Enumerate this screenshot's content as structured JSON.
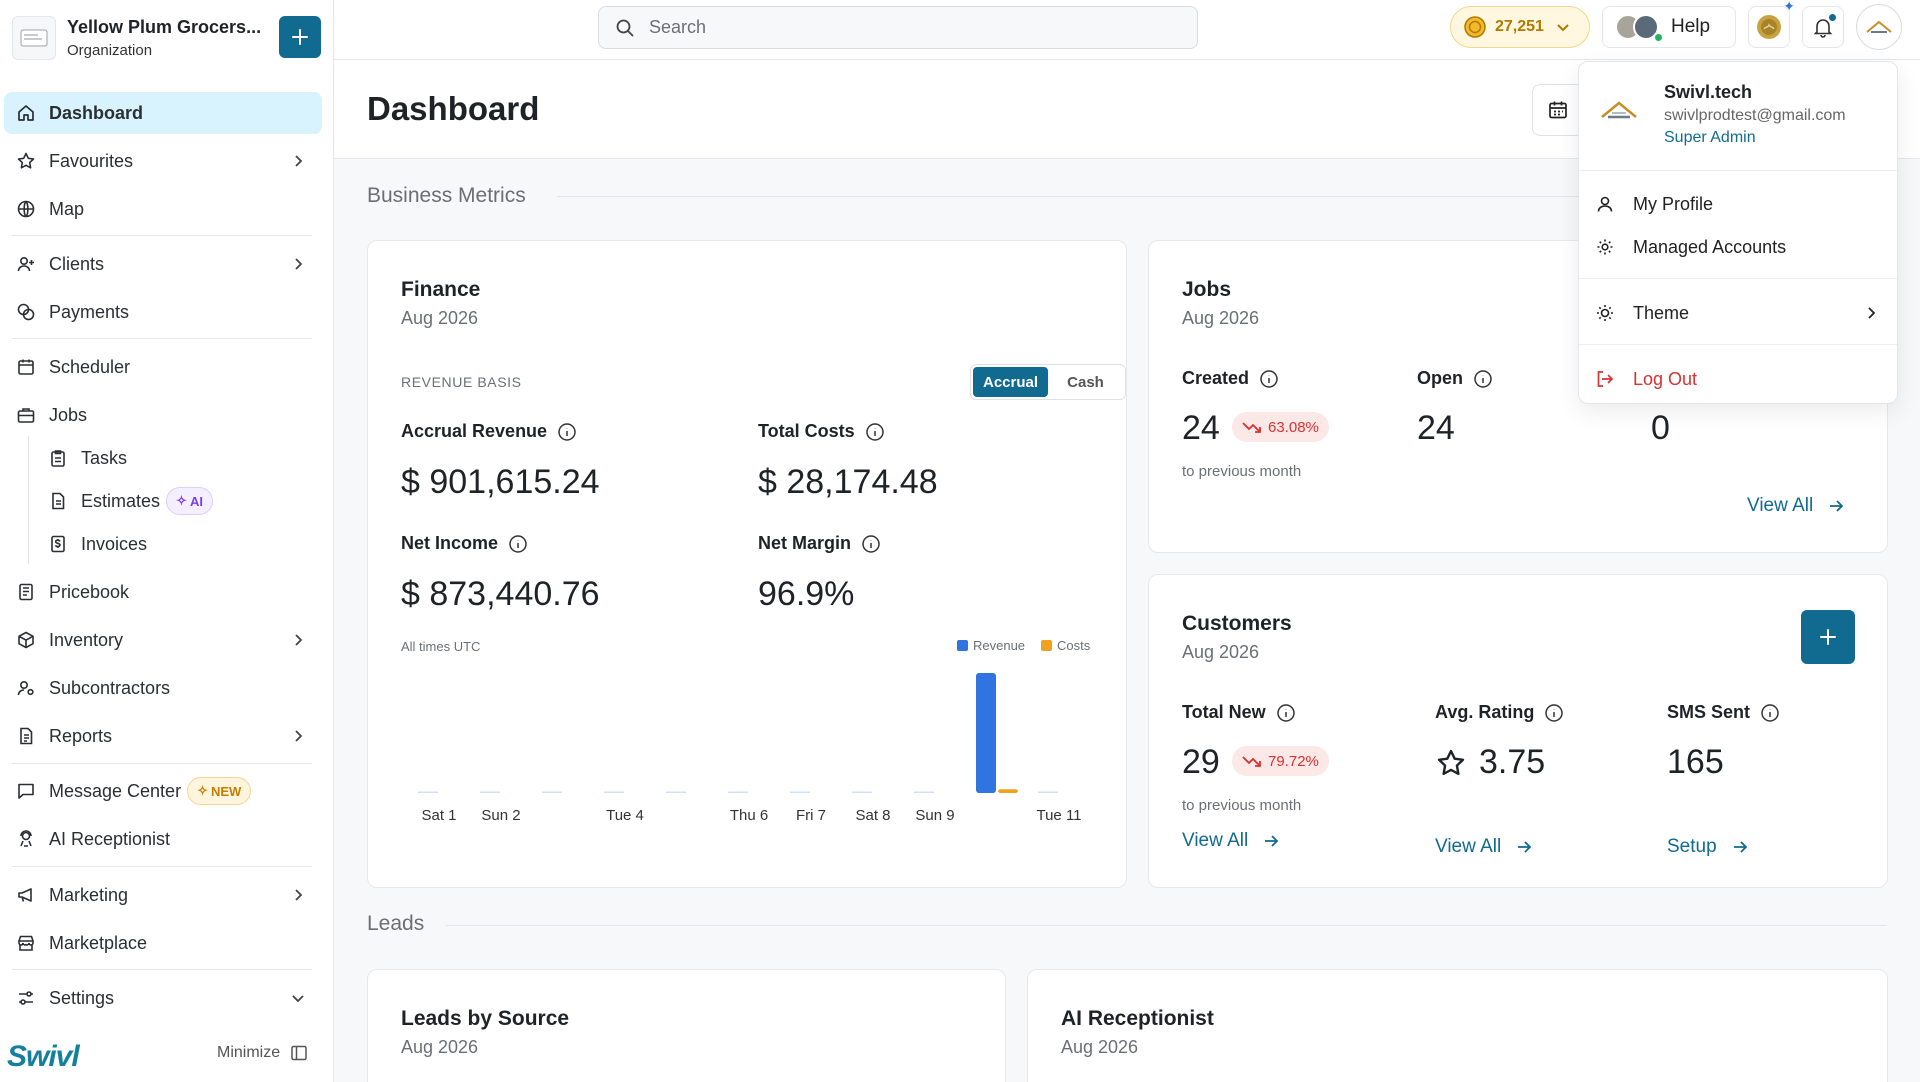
{
  "org": {
    "name": "Yellow Plum Grocers...",
    "type": "Organization"
  },
  "sidebar": {
    "items": [
      {
        "label": "Dashboard"
      },
      {
        "label": "Favourites"
      },
      {
        "label": "Map"
      },
      {
        "label": "Clients"
      },
      {
        "label": "Payments"
      },
      {
        "label": "Scheduler"
      },
      {
        "label": "Jobs"
      },
      {
        "label": "Tasks"
      },
      {
        "label": "Estimates",
        "badge": "AI"
      },
      {
        "label": "Invoices"
      },
      {
        "label": "Pricebook"
      },
      {
        "label": "Inventory"
      },
      {
        "label": "Subcontractors"
      },
      {
        "label": "Reports"
      },
      {
        "label": "Message Center",
        "badge": "NEW"
      },
      {
        "label": "AI Receptionist"
      },
      {
        "label": "Marketing"
      },
      {
        "label": "Marketplace"
      },
      {
        "label": "Settings"
      }
    ],
    "brand": "Swivl",
    "minimize_label": "Minimize"
  },
  "topbar": {
    "search_placeholder": "Search",
    "credits": "27,251",
    "help_label": "Help"
  },
  "page": {
    "title": "Dashboard"
  },
  "sections": {
    "business_metrics": "Business Metrics",
    "leads": "Leads"
  },
  "finance": {
    "title": "Finance",
    "period": "Aug 2026",
    "basis_label": "REVENUE BASIS",
    "toggle": {
      "accrual": "Accrual",
      "cash": "Cash",
      "selected": "Accrual"
    },
    "accrual_revenue_label": "Accrual Revenue",
    "accrual_revenue": "$ 901,615.24",
    "total_costs_label": "Total Costs",
    "total_costs": "$ 28,174.48",
    "net_income_label": "Net Income",
    "net_income": "$ 873,440.76",
    "net_margin_label": "Net Margin",
    "net_margin": "96.9%",
    "timezone_note": "All times UTC"
  },
  "jobs": {
    "title": "Jobs",
    "period": "Aug 2026",
    "created_label": "Created",
    "created": "24",
    "created_trend": "63.08%",
    "open_label": "Open",
    "open": "24",
    "third_value": "0",
    "compare_note": "to previous month",
    "view_all": "View All"
  },
  "customers": {
    "title": "Customers",
    "period": "Aug 2026",
    "total_new_label": "Total New",
    "total_new": "29",
    "total_new_trend": "79.72%",
    "compare_note": "to previous month",
    "avg_rating_label": "Avg. Rating",
    "avg_rating": "3.75",
    "sms_label": "SMS Sent",
    "sms": "165",
    "view_all": "View All",
    "view_all_2": "View All",
    "setup": "Setup"
  },
  "leads_by_source": {
    "title": "Leads by Source",
    "period": "Aug 2026"
  },
  "ai_receptionist_card": {
    "title": "AI Receptionist",
    "period": "Aug 2026"
  },
  "user_menu": {
    "name": "Swivl.tech",
    "email": "swivlprodtest@gmail.com",
    "role": "Super Admin",
    "my_profile": "My Profile",
    "managed_accounts": "Managed Accounts",
    "theme": "Theme",
    "log_out": "Log Out"
  },
  "colors": {
    "accent": "#116a8f",
    "revenue": "#2f74e0",
    "costs": "#f0a21f",
    "negative": "#d93030"
  },
  "chart_data": {
    "type": "bar",
    "categories": [
      "Sat 1",
      "Sun 2",
      "Mon 3",
      "Tue 4",
      "Wed 5",
      "Thu 6",
      "Fri 7",
      "Sat 8",
      "Sun 9",
      "Mon 10",
      "Tue 11"
    ],
    "series": [
      {
        "name": "Revenue",
        "values": [
          0,
          0,
          0,
          0,
          0,
          0,
          0,
          0,
          0,
          901615.24,
          0
        ]
      },
      {
        "name": "Costs",
        "values": [
          0,
          0,
          0,
          0,
          0,
          0,
          0,
          0,
          0,
          28174.48,
          0
        ]
      }
    ],
    "tick_labels": [
      "Sat 1",
      "Sun 2",
      "",
      "Tue 4",
      "",
      "Thu 6",
      "Fri 7",
      "Sat 8",
      "Sun 9",
      "",
      "Tue 11"
    ],
    "legend": "top-right",
    "grid": false
  }
}
